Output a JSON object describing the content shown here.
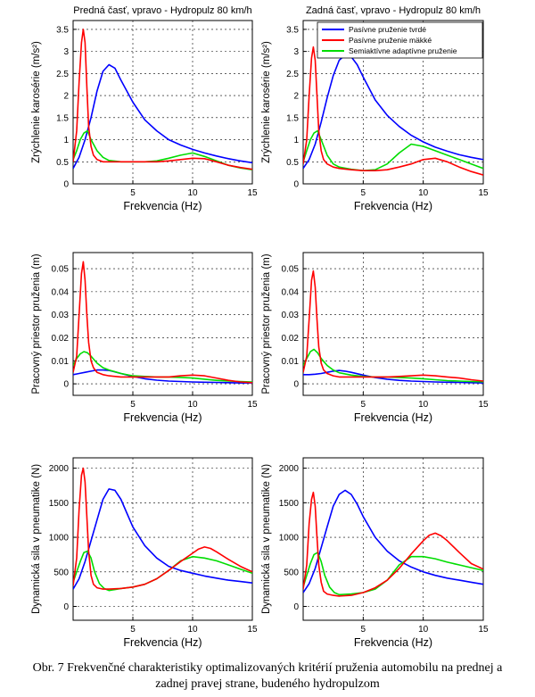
{
  "caption": {
    "line1": "Obr. 7 Frekvenčné charakteristiky optimalizovaných kritérií pruženia automobilu na prednej a",
    "line2": "zadnej pravej strane, budeného hydropulzom"
  },
  "colors": {
    "tvrde": "#0000ff",
    "makke": "#ff0000",
    "semiaktivne": "#00dd00"
  },
  "chart_data": [
    {
      "type": "line",
      "id": "p1",
      "title": "Predná časť, vpravo - Hydropulz  80 km/h",
      "xlabel": "Frekvencia (Hz)",
      "ylabel": "Zrýchlenie karosérie (m/s²)",
      "xlim": [
        0,
        15
      ],
      "ylim": [
        0,
        3.7
      ],
      "xticks": [
        5,
        10,
        15
      ],
      "yticks": [
        0,
        0.5,
        1,
        1.5,
        2,
        2.5,
        3,
        3.5
      ],
      "ytick_labels": [
        "0",
        "0.5",
        "1",
        "1.5",
        "2",
        "2.5",
        "3",
        "3.5"
      ],
      "grid": true,
      "legend": null,
      "series": [
        {
          "key": "tvrde",
          "x": [
            0,
            0.5,
            1,
            1.5,
            2,
            2.5,
            3,
            3.5,
            4,
            5,
            6,
            7,
            8,
            9,
            10,
            11,
            12,
            13,
            14,
            15
          ],
          "y": [
            0.35,
            0.6,
            1.0,
            1.5,
            2.1,
            2.55,
            2.7,
            2.62,
            2.35,
            1.85,
            1.45,
            1.2,
            1.0,
            0.88,
            0.78,
            0.7,
            0.63,
            0.57,
            0.52,
            0.48
          ]
        },
        {
          "key": "makke",
          "x": [
            0,
            0.3,
            0.5,
            0.7,
            0.85,
            1.0,
            1.15,
            1.3,
            1.5,
            1.7,
            2,
            2.5,
            3,
            4,
            5,
            6,
            7,
            8,
            9,
            10,
            11,
            12,
            13,
            14,
            15
          ],
          "y": [
            0.5,
            1.2,
            2.3,
            3.2,
            3.5,
            3.2,
            2.2,
            1.3,
            0.85,
            0.65,
            0.55,
            0.5,
            0.5,
            0.5,
            0.5,
            0.5,
            0.5,
            0.52,
            0.55,
            0.58,
            0.57,
            0.5,
            0.42,
            0.37,
            0.33
          ]
        },
        {
          "key": "semiaktivne",
          "x": [
            0,
            0.3,
            0.6,
            0.9,
            1.2,
            1.5,
            2,
            2.5,
            3,
            4,
            5,
            6,
            7,
            8,
            9,
            10,
            11,
            12,
            13,
            14,
            15
          ],
          "y": [
            0.55,
            0.75,
            1.0,
            1.15,
            1.2,
            1.0,
            0.75,
            0.6,
            0.53,
            0.5,
            0.5,
            0.5,
            0.52,
            0.58,
            0.65,
            0.7,
            0.62,
            0.52,
            0.42,
            0.36,
            0.32
          ]
        }
      ]
    },
    {
      "type": "line",
      "id": "p2",
      "title": "Zadná časť, vpravo - Hydropulz  80 km/h",
      "xlabel": "Frekvencia (Hz)",
      "ylabel": "Zrýchlenie karosérie (m/s²)",
      "xlim": [
        0,
        15
      ],
      "ylim": [
        0,
        3.7
      ],
      "xticks": [
        5,
        10,
        15
      ],
      "yticks": [
        0,
        0.5,
        1,
        1.5,
        2,
        2.5,
        3,
        3.5
      ],
      "ytick_labels": [
        "0",
        "0.5",
        "1",
        "1.5",
        "2",
        "2.5",
        "3",
        "3.5"
      ],
      "grid": true,
      "legend": "top",
      "series": [
        {
          "key": "tvrde",
          "name": "Pasívne pruženie tvrdé",
          "x": [
            0,
            0.5,
            1,
            1.5,
            2,
            2.5,
            3,
            3.5,
            4,
            4.5,
            5,
            6,
            7,
            8,
            9,
            10,
            11,
            12,
            13,
            14,
            15
          ],
          "y": [
            0.35,
            0.55,
            0.9,
            1.4,
            1.95,
            2.45,
            2.8,
            2.92,
            2.88,
            2.7,
            2.42,
            1.9,
            1.55,
            1.3,
            1.1,
            0.95,
            0.83,
            0.74,
            0.66,
            0.6,
            0.55
          ]
        },
        {
          "key": "makke",
          "name": "Pasívne pruženie mäkké",
          "x": [
            0,
            0.3,
            0.5,
            0.7,
            0.85,
            1.0,
            1.15,
            1.3,
            1.5,
            1.7,
            2,
            2.5,
            3,
            4,
            5,
            6,
            7,
            8,
            9,
            10,
            11,
            12,
            13,
            14,
            15
          ],
          "y": [
            0.45,
            1.0,
            2.0,
            2.85,
            3.1,
            2.8,
            2.0,
            1.2,
            0.75,
            0.55,
            0.45,
            0.38,
            0.35,
            0.32,
            0.3,
            0.3,
            0.32,
            0.38,
            0.45,
            0.55,
            0.58,
            0.5,
            0.38,
            0.28,
            0.2
          ]
        },
        {
          "key": "semiaktivne",
          "name": "Semiaktívne adaptívne pruženie",
          "x": [
            0,
            0.3,
            0.6,
            0.9,
            1.2,
            1.5,
            2,
            2.5,
            3,
            4,
            5,
            6,
            7,
            8,
            9,
            10,
            11,
            12,
            13,
            14,
            15
          ],
          "y": [
            0.5,
            0.75,
            1.0,
            1.15,
            1.2,
            1.0,
            0.65,
            0.45,
            0.38,
            0.33,
            0.3,
            0.32,
            0.45,
            0.7,
            0.9,
            0.85,
            0.75,
            0.65,
            0.55,
            0.45,
            0.35
          ]
        }
      ]
    },
    {
      "type": "line",
      "id": "p3",
      "xlabel": "Frekvencia (Hz)",
      "ylabel": "Pracovný priestor pruženia (m)",
      "xlim": [
        0,
        15
      ],
      "ylim": [
        -0.005,
        0.057
      ],
      "xticks": [
        5,
        10,
        15
      ],
      "yticks": [
        0,
        0.01,
        0.02,
        0.03,
        0.04,
        0.05
      ],
      "ytick_labels": [
        "0",
        "0.01",
        "0.02",
        "0.03",
        "0.04",
        "0.05"
      ],
      "grid": true,
      "legend": null,
      "series": [
        {
          "key": "tvrde",
          "x": [
            0,
            0.5,
            1,
            1.5,
            2,
            2.5,
            3,
            3.5,
            4,
            5,
            6,
            7,
            8,
            9,
            10,
            11,
            12,
            13,
            14,
            15
          ],
          "y": [
            0.004,
            0.0045,
            0.005,
            0.0055,
            0.006,
            0.006,
            0.0058,
            0.0052,
            0.0045,
            0.0032,
            0.0022,
            0.0016,
            0.0012,
            0.001,
            0.0008,
            0.0007,
            0.0006,
            0.0005,
            0.0004,
            0.0004
          ]
        },
        {
          "key": "makke",
          "x": [
            0,
            0.3,
            0.5,
            0.7,
            0.85,
            1.0,
            1.15,
            1.3,
            1.5,
            1.7,
            2,
            2.5,
            3,
            4,
            5,
            6,
            7,
            8,
            9,
            10,
            11,
            12,
            13,
            14,
            15
          ],
          "y": [
            0.005,
            0.012,
            0.03,
            0.048,
            0.053,
            0.045,
            0.03,
            0.018,
            0.01,
            0.007,
            0.005,
            0.004,
            0.0035,
            0.003,
            0.003,
            0.003,
            0.003,
            0.003,
            0.0035,
            0.0038,
            0.0035,
            0.0025,
            0.0015,
            0.0008,
            0.0005
          ]
        },
        {
          "key": "semiaktivne",
          "x": [
            0,
            0.3,
            0.6,
            0.9,
            1.2,
            1.5,
            2,
            2.5,
            3,
            4,
            5,
            6,
            7,
            8,
            9,
            10,
            11,
            12,
            13,
            14,
            15
          ],
          "y": [
            0.008,
            0.011,
            0.013,
            0.014,
            0.0135,
            0.012,
            0.009,
            0.007,
            0.006,
            0.0045,
            0.0035,
            0.0032,
            0.003,
            0.003,
            0.0028,
            0.0025,
            0.002,
            0.0015,
            0.0012,
            0.001,
            0.0008
          ]
        }
      ]
    },
    {
      "type": "line",
      "id": "p4",
      "xlabel": "Frekvencia (Hz)",
      "ylabel": "Pracovný priestor pruženia (m)",
      "xlim": [
        0,
        15
      ],
      "ylim": [
        -0.005,
        0.057
      ],
      "xticks": [
        5,
        10,
        15
      ],
      "yticks": [
        0,
        0.01,
        0.02,
        0.03,
        0.04,
        0.05
      ],
      "ytick_labels": [
        "0",
        "0.01",
        "0.02",
        "0.03",
        "0.04",
        "0.05"
      ],
      "grid": true,
      "legend": null,
      "series": [
        {
          "key": "tvrde",
          "x": [
            0,
            0.5,
            1,
            1.5,
            2,
            2.5,
            3,
            3.5,
            4,
            5,
            6,
            7,
            8,
            9,
            10,
            11,
            12,
            13,
            14,
            15
          ],
          "y": [
            0.004,
            0.004,
            0.0042,
            0.0045,
            0.005,
            0.0055,
            0.0058,
            0.0055,
            0.005,
            0.0038,
            0.0027,
            0.002,
            0.0015,
            0.0012,
            0.001,
            0.0008,
            0.0007,
            0.0006,
            0.0005,
            0.0004
          ]
        },
        {
          "key": "makke",
          "x": [
            0,
            0.3,
            0.5,
            0.7,
            0.85,
            1.0,
            1.15,
            1.3,
            1.5,
            1.7,
            2,
            2.5,
            3,
            4,
            5,
            6,
            7,
            8,
            9,
            10,
            11,
            12,
            13,
            14,
            15
          ],
          "y": [
            0.005,
            0.012,
            0.028,
            0.045,
            0.049,
            0.042,
            0.028,
            0.016,
            0.009,
            0.006,
            0.0045,
            0.0035,
            0.003,
            0.003,
            0.003,
            0.003,
            0.003,
            0.0032,
            0.0035,
            0.0038,
            0.0035,
            0.003,
            0.0025,
            0.0018,
            0.0012
          ]
        },
        {
          "key": "semiaktivne",
          "x": [
            0,
            0.3,
            0.6,
            0.9,
            1.2,
            1.5,
            2,
            2.5,
            3,
            4,
            5,
            6,
            7,
            8,
            9,
            10,
            11,
            12,
            13,
            14,
            15
          ],
          "y": [
            0.008,
            0.011,
            0.014,
            0.015,
            0.0135,
            0.011,
            0.008,
            0.006,
            0.0048,
            0.0038,
            0.0032,
            0.003,
            0.003,
            0.0028,
            0.0025,
            0.0022,
            0.0018,
            0.0014,
            0.0012,
            0.001,
            0.0009
          ]
        }
      ]
    },
    {
      "type": "line",
      "id": "p5",
      "xlabel": "Frekvencia (Hz)",
      "ylabel": "Dynamická sila v pneumatike (N)",
      "xlim": [
        0,
        15
      ],
      "ylim": [
        -200,
        2150
      ],
      "xticks": [
        5,
        10,
        15
      ],
      "yticks": [
        0,
        500,
        1000,
        1500,
        2000
      ],
      "ytick_labels": [
        "0",
        "500",
        "1000",
        "1500",
        "2000"
      ],
      "grid": true,
      "legend": null,
      "series": [
        {
          "key": "tvrde",
          "x": [
            0,
            0.5,
            1,
            1.5,
            2,
            2.5,
            3,
            3.5,
            4,
            4.5,
            5,
            6,
            7,
            8,
            9,
            10,
            11,
            12,
            13,
            14,
            15
          ],
          "y": [
            250,
            400,
            650,
            950,
            1250,
            1550,
            1700,
            1680,
            1550,
            1350,
            1150,
            880,
            700,
            580,
            520,
            480,
            440,
            410,
            380,
            360,
            340
          ]
        },
        {
          "key": "makke",
          "x": [
            0,
            0.3,
            0.5,
            0.7,
            0.85,
            1.0,
            1.15,
            1.3,
            1.5,
            1.7,
            2,
            2.5,
            3,
            4,
            5,
            6,
            7,
            8,
            9,
            10,
            10.5,
            11,
            11.5,
            12,
            13,
            14,
            15
          ],
          "y": [
            300,
            700,
            1400,
            1900,
            2000,
            1800,
            1300,
            800,
            450,
            320,
            270,
            250,
            250,
            260,
            280,
            320,
            400,
            520,
            650,
            770,
            830,
            860,
            840,
            790,
            680,
            580,
            500
          ]
        },
        {
          "key": "semiaktivne",
          "x": [
            0,
            0.3,
            0.6,
            0.9,
            1.2,
            1.5,
            1.8,
            2.2,
            2.6,
            3,
            4,
            5,
            6,
            7,
            8,
            9,
            10,
            11,
            12,
            13,
            14,
            15
          ],
          "y": [
            350,
            500,
            650,
            780,
            800,
            700,
            500,
            330,
            260,
            230,
            260,
            280,
            320,
            400,
            520,
            660,
            720,
            700,
            660,
            600,
            540,
            480
          ]
        }
      ]
    },
    {
      "type": "line",
      "id": "p6",
      "xlabel": "Frekvencia (Hz)",
      "ylabel": "Dynamická sila v pneumatike (N)",
      "xlim": [
        0,
        15
      ],
      "ylim": [
        -200,
        2150
      ],
      "xticks": [
        5,
        10,
        15
      ],
      "yticks": [
        0,
        500,
        1000,
        1500,
        2000
      ],
      "ytick_labels": [
        "0",
        "500",
        "1000",
        "1500",
        "2000"
      ],
      "grid": true,
      "legend": null,
      "series": [
        {
          "key": "tvrde",
          "x": [
            0,
            0.5,
            1,
            1.5,
            2,
            2.5,
            3,
            3.5,
            4,
            4.5,
            5,
            6,
            7,
            8,
            9,
            10,
            11,
            12,
            13,
            14,
            15
          ],
          "y": [
            200,
            330,
            550,
            850,
            1150,
            1450,
            1620,
            1680,
            1620,
            1480,
            1300,
            1000,
            800,
            660,
            570,
            500,
            450,
            410,
            380,
            350,
            320
          ]
        },
        {
          "key": "makke",
          "x": [
            0,
            0.3,
            0.5,
            0.7,
            0.85,
            1.0,
            1.15,
            1.3,
            1.5,
            1.7,
            2,
            2.5,
            3,
            4,
            5,
            6,
            7,
            8,
            9,
            10,
            10.5,
            11,
            11.5,
            12,
            13,
            14,
            15
          ],
          "y": [
            250,
            600,
            1200,
            1550,
            1650,
            1450,
            1000,
            600,
            350,
            220,
            180,
            160,
            150,
            160,
            200,
            270,
            380,
            550,
            760,
            950,
            1030,
            1060,
            1020,
            950,
            780,
            620,
            540
          ]
        },
        {
          "key": "semiaktivne",
          "x": [
            0,
            0.3,
            0.6,
            0.9,
            1.2,
            1.5,
            1.8,
            2.2,
            2.6,
            3,
            4,
            5,
            6,
            7,
            8,
            9,
            10,
            11,
            12,
            13,
            14,
            15
          ],
          "y": [
            280,
            450,
            620,
            750,
            780,
            650,
            450,
            280,
            200,
            170,
            180,
            200,
            250,
            380,
            600,
            720,
            720,
            690,
            640,
            600,
            560,
            520
          ]
        }
      ]
    }
  ]
}
